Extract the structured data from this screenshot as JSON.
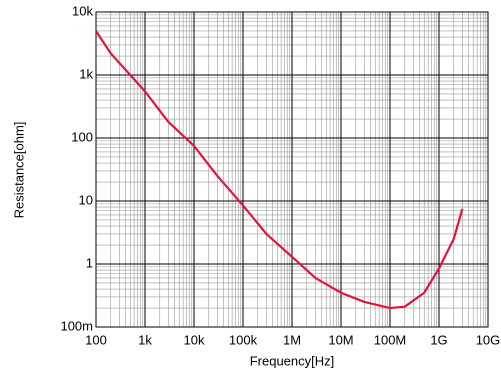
{
  "chart_data": {
    "type": "line",
    "x_label": "Frequency[Hz]",
    "y_label": "Resistance[ohm]",
    "x": [
      100,
      200,
      500,
      1000,
      3000,
      10000,
      30000,
      100000,
      300000,
      1000000,
      3000000,
      10000000,
      30000000,
      100000000,
      200000000,
      500000000,
      1000000000,
      2000000000,
      3000000000
    ],
    "values": [
      5000,
      2200,
      1000,
      550,
      180,
      75,
      25,
      8.5,
      3,
      1.3,
      0.6,
      0.35,
      0.25,
      0.2,
      0.21,
      0.35,
      0.85,
      2.5,
      7.5
    ],
    "color": "#e0143c",
    "xlog": true,
    "ylog": true,
    "grid": true,
    "minor_grid": true,
    "xlim": [
      100,
      10000000000
    ],
    "xticks": [
      100,
      {
        "value": 1000,
        "label": "1k"
      },
      {
        "value": 10000,
        "label": "10k"
      },
      {
        "value": 100000,
        "label": "100k"
      },
      {
        "value": 1000000,
        "label": "1M"
      },
      {
        "value": 10000000,
        "label": "10M"
      },
      {
        "value": 100000000,
        "label": "100M"
      },
      {
        "value": 1000000000,
        "label": "1G"
      },
      {
        "value": 10000000000,
        "label": "10G"
      }
    ],
    "ylim": [
      0.1,
      10000
    ],
    "yticks": [
      {
        "value": 0.1,
        "label": "100m"
      },
      1,
      10,
      100,
      {
        "value": 1000,
        "label": "1k"
      },
      {
        "value": 10000,
        "label": "10k"
      }
    ]
  }
}
